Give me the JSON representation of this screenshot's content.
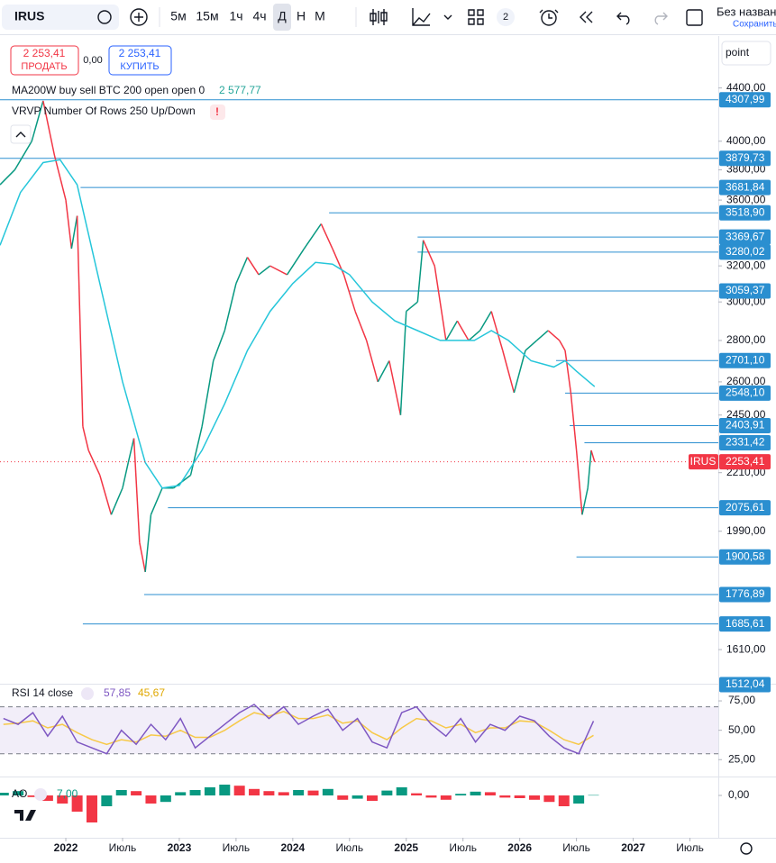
{
  "toolbar": {
    "symbol": "IRUS",
    "intervals": [
      "5м",
      "15м",
      "1ч",
      "4ч",
      "Д",
      "Н",
      "М"
    ],
    "layout_count": "2",
    "account": "Без назван",
    "save": "Сохранить"
  },
  "trade": {
    "sell_price": "2 253,41",
    "sell": "ПРОДАТЬ",
    "spread": "0,00",
    "buy_price": "2 253,41",
    "buy": "КУПИТЬ"
  },
  "scale_mode": "point",
  "indicators": [
    {
      "label": "MA200W buy sell BTC 200 open open 0",
      "value": "2 577,77"
    },
    {
      "label": "VRVP Number Of Rows 250 Up/Down",
      "alert": "!"
    }
  ],
  "chart_data": [
    {
      "type": "line",
      "log_scale": true,
      "xlim": [
        2021.42,
        2027.75
      ],
      "ylim": [
        1500,
        4790
      ],
      "xticks": [
        {
          "value": 2022,
          "label": "2022"
        },
        {
          "value": 2022.5,
          "label": "Июль"
        },
        {
          "value": 2023,
          "label": "2023"
        },
        {
          "value": 2023.5,
          "label": "Июль"
        },
        {
          "value": 2024,
          "label": "2024"
        },
        {
          "value": 2024.5,
          "label": "Июль"
        },
        {
          "value": 2025,
          "label": "2025"
        },
        {
          "value": 2025.5,
          "label": "Июль"
        },
        {
          "value": 2026,
          "label": "2026"
        },
        {
          "value": 2026.5,
          "label": "Июль"
        },
        {
          "value": 2027,
          "label": "2027"
        },
        {
          "value": 2027.5,
          "label": "Июль"
        }
      ],
      "yticks": [
        {
          "value": 4400,
          "label": "4400,00"
        },
        {
          "value": 4000,
          "label": "4000,00"
        },
        {
          "value": 3800,
          "label": "3800,00"
        },
        {
          "value": 3600,
          "label": "3600,00"
        },
        {
          "value": 3200,
          "label": "3200,00"
        },
        {
          "value": 3000,
          "label": "3000,00"
        },
        {
          "value": 2800,
          "label": "2800,00"
        },
        {
          "value": 2600,
          "label": "2600,00"
        },
        {
          "value": 2450,
          "label": "2450,00"
        },
        {
          "value": 2210,
          "label": "2210,00"
        },
        {
          "value": 1990,
          "label": "1990,00"
        },
        {
          "value": 1610,
          "label": "1610,00"
        }
      ],
      "up_color": "#089981",
      "down_color": "#f23645",
      "series": [
        {
          "name": "IRUS",
          "x": [
            2021.42,
            2021.55,
            2021.7,
            2021.8,
            2021.9,
            2022.0,
            2022.05,
            2022.1,
            2022.15,
            2022.2,
            2022.3,
            2022.4,
            2022.5,
            2022.55,
            2022.6,
            2022.65,
            2022.7,
            2022.75,
            2022.85,
            2022.95,
            2023.1,
            2023.2,
            2023.3,
            2023.4,
            2023.5,
            2023.6,
            2023.7,
            2023.8,
            2023.95,
            2024.1,
            2024.25,
            2024.35,
            2024.45,
            2024.55,
            2024.65,
            2024.75,
            2024.85,
            2024.95,
            2025.0,
            2025.1,
            2025.15,
            2025.25,
            2025.35,
            2025.45,
            2025.55,
            2025.65,
            2025.75,
            2025.85,
            2025.95,
            2026.05,
            2026.15,
            2026.25,
            2026.35,
            2026.4,
            2026.45,
            2026.5,
            2026.55,
            2026.6,
            2026.63,
            2026.66
          ],
          "values": [
            3700,
            3800,
            4000,
            4300,
            3900,
            3600,
            3300,
            3500,
            2400,
            2300,
            2200,
            2050,
            2150,
            2250,
            2350,
            1950,
            1850,
            2050,
            2150,
            2150,
            2200,
            2400,
            2700,
            2850,
            3100,
            3250,
            3150,
            3200,
            3150,
            3300,
            3450,
            3300,
            3150,
            2950,
            2800,
            2600,
            2700,
            2450,
            2950,
            3000,
            3350,
            3200,
            2800,
            2900,
            2800,
            2850,
            2950,
            2750,
            2550,
            2750,
            2800,
            2850,
            2800,
            2750,
            2550,
            2300,
            2050,
            2150,
            2300,
            2253.41
          ]
        },
        {
          "name": "MA200W",
          "color": "#26c6da",
          "x": [
            2021.42,
            2021.6,
            2021.8,
            2021.95,
            2022.1,
            2022.3,
            2022.5,
            2022.7,
            2022.85,
            2023.0,
            2023.2,
            2023.4,
            2023.6,
            2023.8,
            2024.0,
            2024.2,
            2024.35,
            2024.5,
            2024.7,
            2024.9,
            2025.1,
            2025.3,
            2025.6,
            2025.75,
            2025.9,
            2026.1,
            2026.3,
            2026.4,
            2026.5,
            2026.66
          ],
          "values": [
            3320,
            3650,
            3850,
            3870,
            3700,
            3100,
            2600,
            2250,
            2150,
            2160,
            2300,
            2500,
            2750,
            2950,
            3100,
            3220,
            3210,
            3150,
            3000,
            2900,
            2850,
            2800,
            2800,
            2850,
            2800,
            2700,
            2670,
            2700,
            2650,
            2577.77
          ]
        }
      ],
      "levels_color": "#2b8fd0",
      "levels": [
        {
          "value": 4307.99,
          "label": "4307,99",
          "from": 2021.42
        },
        {
          "value": 3879.73,
          "label": "3879,73",
          "from": 2021.42
        },
        {
          "value": 3681.84,
          "label": "3681,84",
          "from": 2022.13
        },
        {
          "value": 3518.9,
          "label": "3518,90",
          "from": 2024.32
        },
        {
          "value": 3369.67,
          "label": "3369,67",
          "from": 2025.1
        },
        {
          "value": 3280.02,
          "label": "3280,02",
          "from": 2025.1
        },
        {
          "value": 3059.37,
          "label": "3059,37",
          "from": 2024.5
        },
        {
          "value": 2701.1,
          "label": "2701,10",
          "from": 2026.32
        },
        {
          "value": 2548.1,
          "label": "2548,10",
          "from": 2026.4
        },
        {
          "value": 2403.91,
          "label": "2403,91",
          "from": 2026.44
        },
        {
          "value": 2331.42,
          "label": "2331,42",
          "from": 2026.57
        },
        {
          "value": 2075.61,
          "label": "2075,61",
          "from": 2022.9
        },
        {
          "value": 1900.58,
          "label": "1900,58",
          "from": 2026.5
        },
        {
          "value": 1776.89,
          "label": "1776,89",
          "from": 2022.69
        },
        {
          "value": 1685.61,
          "label": "1685,61",
          "from": 2022.15
        },
        {
          "value": 1512.04,
          "label": "1512,04"
        }
      ],
      "last_price": {
        "tag": "IRUS",
        "value": 2253.41,
        "label": "2253,41",
        "color": "#f23645"
      }
    },
    {
      "type": "line",
      "title": "RSI 14 close",
      "ylim": [
        16,
        85
      ],
      "band": [
        30,
        70
      ],
      "yticks": [
        {
          "value": 75,
          "label": "75,00"
        },
        {
          "value": 50,
          "label": "50,00"
        },
        {
          "value": 25,
          "label": "25,00"
        }
      ],
      "series": [
        {
          "name": "RSI",
          "color": "#7e57c2",
          "value_label": "57,85",
          "x": [
            2021.45,
            2021.58,
            2021.71,
            2021.84,
            2021.97,
            2022.1,
            2022.23,
            2022.36,
            2022.49,
            2022.62,
            2022.75,
            2022.88,
            2023.01,
            2023.14,
            2023.27,
            2023.4,
            2023.53,
            2023.66,
            2023.79,
            2023.92,
            2024.05,
            2024.18,
            2024.31,
            2024.44,
            2024.57,
            2024.7,
            2024.83,
            2024.96,
            2025.09,
            2025.22,
            2025.35,
            2025.48,
            2025.61,
            2025.74,
            2025.87,
            2026.0,
            2026.13,
            2026.26,
            2026.39,
            2026.52,
            2026.65
          ],
          "values": [
            60,
            55,
            65,
            45,
            62,
            40,
            35,
            30,
            50,
            38,
            55,
            42,
            60,
            35,
            45,
            55,
            65,
            72,
            60,
            70,
            55,
            62,
            68,
            50,
            60,
            40,
            35,
            65,
            70,
            55,
            45,
            60,
            40,
            55,
            50,
            62,
            58,
            45,
            35,
            30,
            57.85
          ]
        },
        {
          "name": "Signal",
          "color": "#f7c948",
          "value_label": "45,67",
          "x": [
            2021.45,
            2021.58,
            2021.71,
            2021.84,
            2021.97,
            2022.1,
            2022.23,
            2022.36,
            2022.49,
            2022.62,
            2022.75,
            2022.88,
            2023.01,
            2023.14,
            2023.27,
            2023.4,
            2023.53,
            2023.66,
            2023.79,
            2023.92,
            2024.05,
            2024.18,
            2024.31,
            2024.44,
            2024.57,
            2024.7,
            2024.83,
            2024.96,
            2025.09,
            2025.22,
            2025.35,
            2025.48,
            2025.61,
            2025.74,
            2025.87,
            2026.0,
            2026.13,
            2026.26,
            2026.39,
            2026.52,
            2026.65
          ],
          "values": [
            55,
            56,
            58,
            52,
            55,
            48,
            42,
            38,
            42,
            40,
            46,
            45,
            50,
            44,
            44,
            50,
            58,
            65,
            62,
            66,
            60,
            60,
            63,
            56,
            58,
            48,
            42,
            52,
            60,
            58,
            52,
            55,
            48,
            52,
            52,
            58,
            57,
            50,
            42,
            38,
            45.67
          ]
        }
      ]
    },
    {
      "type": "bar",
      "title": "AO",
      "value_label": "7,00",
      "ylim": [
        -700,
        300
      ],
      "yticks": [
        {
          "value": 0,
          "label": "0,00"
        }
      ],
      "up_color": "#089981",
      "down_color": "#f23645",
      "x": [
        2021.45,
        2021.58,
        2021.71,
        2021.84,
        2021.97,
        2022.1,
        2022.23,
        2022.36,
        2022.49,
        2022.62,
        2022.75,
        2022.88,
        2023.01,
        2023.14,
        2023.27,
        2023.4,
        2023.53,
        2023.66,
        2023.79,
        2023.92,
        2024.05,
        2024.18,
        2024.31,
        2024.44,
        2024.57,
        2024.7,
        2024.83,
        2024.96,
        2025.09,
        2025.22,
        2025.35,
        2025.48,
        2025.61,
        2025.74,
        2025.87,
        2026.0,
        2026.13,
        2026.26,
        2026.39,
        2026.52,
        2026.65
      ],
      "values": [
        50,
        80,
        -30,
        -100,
        -150,
        -300,
        -500,
        -200,
        100,
        80,
        -150,
        -120,
        60,
        100,
        150,
        200,
        180,
        120,
        80,
        60,
        100,
        90,
        120,
        -80,
        -60,
        -100,
        90,
        150,
        40,
        -40,
        -80,
        30,
        70,
        60,
        -40,
        -50,
        -80,
        -120,
        -200,
        -150,
        7
      ]
    }
  ]
}
